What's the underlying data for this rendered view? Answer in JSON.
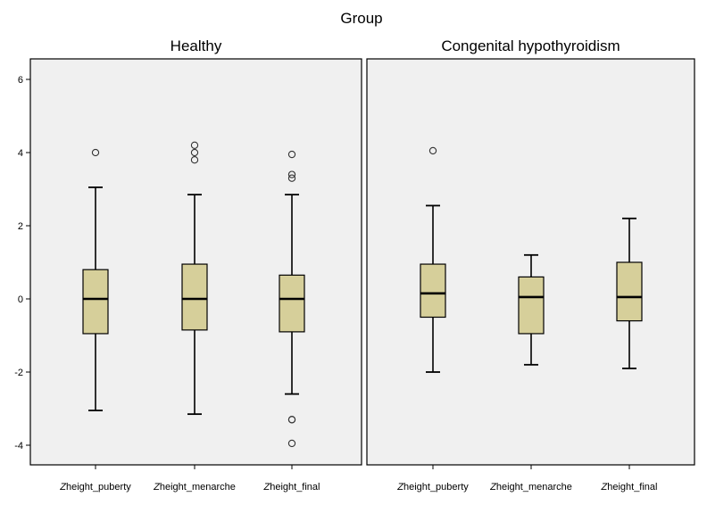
{
  "chart_data": {
    "type": "boxplot",
    "title": "Group",
    "ylim": [
      -4.6,
      6.3
    ],
    "yticks": [
      -4,
      -2,
      0,
      2,
      4,
      6
    ],
    "ytick_labels": [
      "-4",
      "-2",
      "0",
      "2",
      "4",
      "6"
    ],
    "panels": [
      {
        "title": "Healthy",
        "categories": [
          {
            "z": "Z",
            "label": "height_puberty",
            "whisker_low": -3.05,
            "q1": -0.95,
            "median": 0.0,
            "q3": 0.8,
            "whisker_high": 3.05,
            "outliers": [
              4.0
            ]
          },
          {
            "z": "Z",
            "label": "height_menarche",
            "whisker_low": -3.15,
            "q1": -0.85,
            "median": 0.0,
            "q3": 0.95,
            "whisker_high": 2.85,
            "outliers": [
              3.8,
              4.0,
              4.2
            ]
          },
          {
            "z": "Z",
            "label": "height_final",
            "whisker_low": -2.6,
            "q1": -0.9,
            "median": 0.0,
            "q3": 0.65,
            "whisker_high": 2.85,
            "outliers": [
              3.3,
              3.4,
              3.95,
              -3.3,
              -3.3,
              -3.95
            ]
          }
        ]
      },
      {
        "title": "Congenital hypothyroidism",
        "categories": [
          {
            "z": "Z",
            "label": "height_puberty",
            "whisker_low": -2.0,
            "q1": -0.5,
            "median": 0.15,
            "q3": 0.95,
            "whisker_high": 2.55,
            "outliers": [
              4.05
            ]
          },
          {
            "z": "Z",
            "label": "height_menarche",
            "whisker_low": -1.8,
            "q1": -0.95,
            "median": 0.05,
            "q3": 0.6,
            "whisker_high": 1.2,
            "outliers": []
          },
          {
            "z": "Z",
            "label": "height_final",
            "whisker_low": -1.9,
            "q1": -0.6,
            "median": 0.05,
            "q3": 1.0,
            "whisker_high": 2.2,
            "outliers": []
          }
        ]
      }
    ]
  },
  "colors": {
    "box_fill": "#d6cf9a",
    "box_stroke": "#000000",
    "panel_bg": "#f0f0f0",
    "panel_border": "#000000"
  }
}
